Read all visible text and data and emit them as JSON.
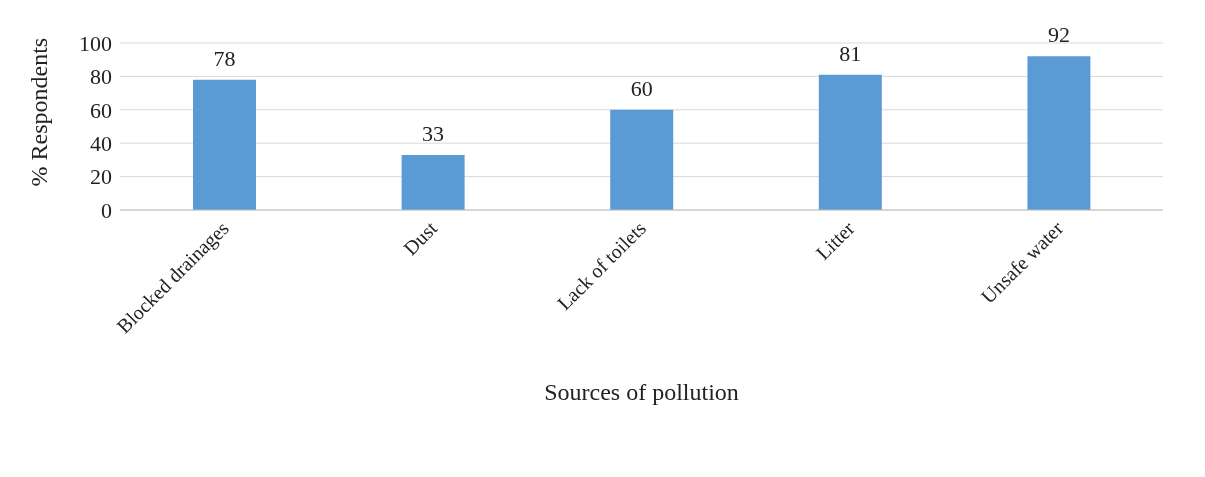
{
  "chart_data": {
    "type": "bar",
    "xlabel": "Sources of pollution",
    "ylabel": "% Respondents",
    "categories": [
      "Blocked drainages",
      "Dust",
      "Lack of toilets",
      "Litter",
      "Unsafe water"
    ],
    "values": [
      78,
      33,
      60,
      81,
      92
    ],
    "color": "#5b9bd5",
    "ylim": [
      0,
      100
    ],
    "yticks": [
      0,
      20,
      40,
      60,
      80,
      100
    ],
    "grid": "y",
    "data_labels": true
  }
}
